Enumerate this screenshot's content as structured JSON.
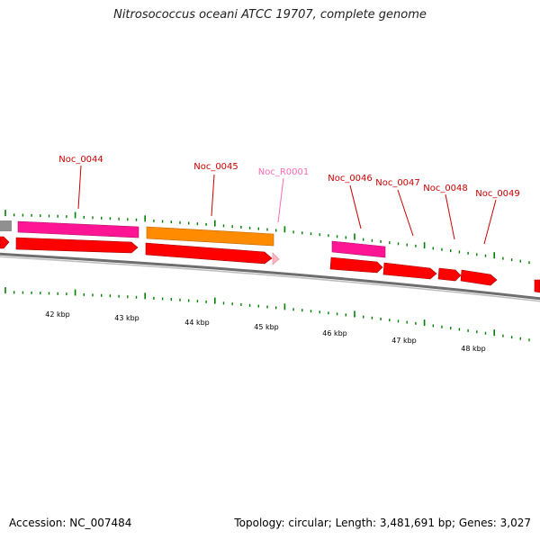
{
  "title": "Nitrosococcus oceani ATCC 19707, complete genome",
  "footer": {
    "accession": "Accession: NC_007484",
    "summary": "Topology: circular; Length: 3,481,691 bp; Genes: 3,027"
  },
  "colors": {
    "cds": "#ff0000",
    "pink_feature": "#ff1493",
    "orange_feature": "#ff8c00",
    "rna_feature": "#ffb6c1",
    "label_red": "#cc0000",
    "label_pink": "#ff69b4",
    "tick": "#008000",
    "backbone": "#808080"
  },
  "gene_labels": [
    {
      "text": "Noc_0044",
      "color": "label_red"
    },
    {
      "text": "Noc_0045",
      "color": "label_red"
    },
    {
      "text": "Noc_R0001",
      "color": "label_pink"
    },
    {
      "text": "Noc_0046",
      "color": "label_red"
    },
    {
      "text": "Noc_0047",
      "color": "label_red"
    },
    {
      "text": "Noc_0048",
      "color": "label_red"
    },
    {
      "text": "Noc_0049",
      "color": "label_red"
    }
  ],
  "kbp_labels": [
    "42 kbp",
    "43 kbp",
    "44 kbp",
    "45 kbp",
    "46 kbp",
    "47 kbp",
    "48 kbp"
  ]
}
